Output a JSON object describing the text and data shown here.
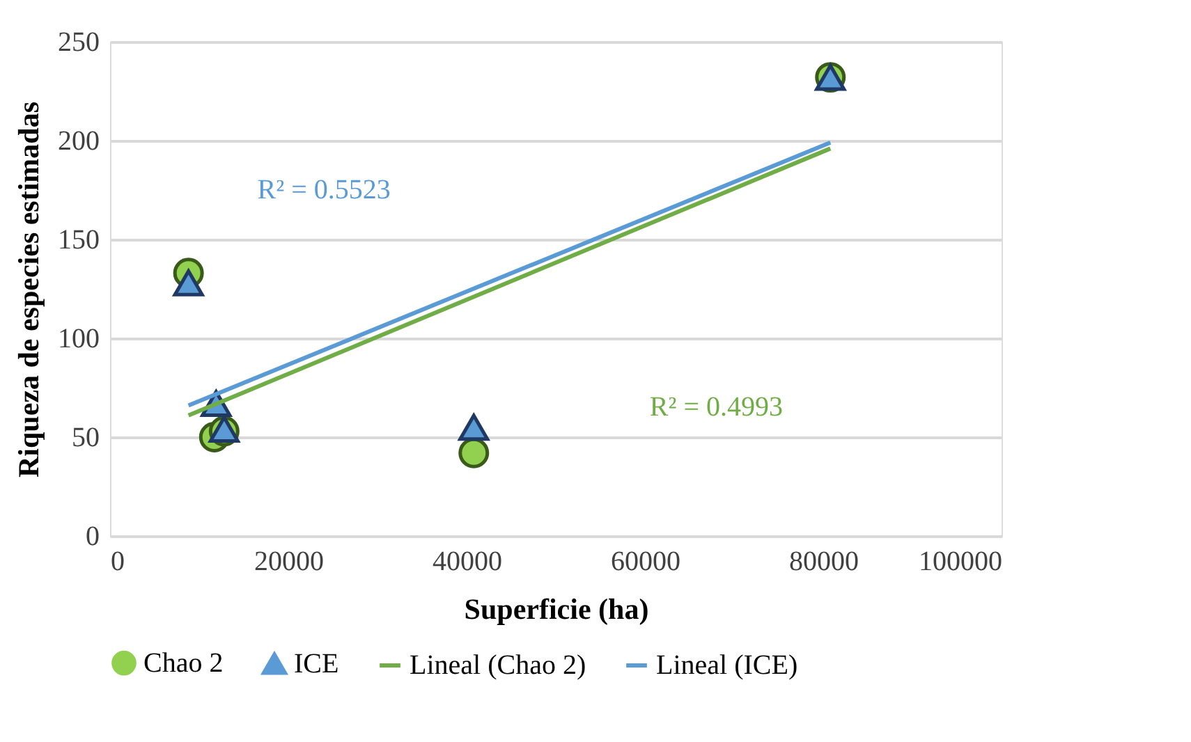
{
  "chart_data": {
    "type": "scatter",
    "xlabel": "Superficie (ha)",
    "ylabel": "Riqueza de especies estimadas",
    "xlim": [
      0,
      100000
    ],
    "xticks": [
      0,
      20000,
      40000,
      60000,
      80000,
      100000
    ],
    "ylim": [
      0,
      250
    ],
    "yticks": [
      0,
      50,
      100,
      150,
      200,
      250
    ],
    "grid": "y",
    "legend": "bottom",
    "series": [
      {
        "name": "Chao 2",
        "type": "scatter",
        "marker": "circle",
        "color": "#92d050",
        "x": [
          8800,
          11700,
          12800,
          40800,
          80800
        ],
        "values": [
          133,
          50,
          53,
          42,
          232
        ]
      },
      {
        "name": "ICE",
        "type": "scatter",
        "marker": "triangle",
        "color": "#5b9bd5",
        "x": [
          8800,
          11900,
          12800,
          40800,
          80800
        ],
        "values": [
          128,
          67,
          54,
          55,
          232
        ]
      },
      {
        "name": "Lineal (Chao 2)",
        "type": "line",
        "marker": "none",
        "color": "#70ad47",
        "x": [
          8800,
          80800
        ],
        "values": [
          61,
          196
        ]
      },
      {
        "name": "Lineal (ICE)",
        "type": "line",
        "marker": "none",
        "color": "#5b9bd5",
        "x": [
          8800,
          80800
        ],
        "values": [
          66,
          199
        ]
      }
    ],
    "annotations": [
      "R² = 0.5523",
      "R² = 0.4993"
    ]
  }
}
